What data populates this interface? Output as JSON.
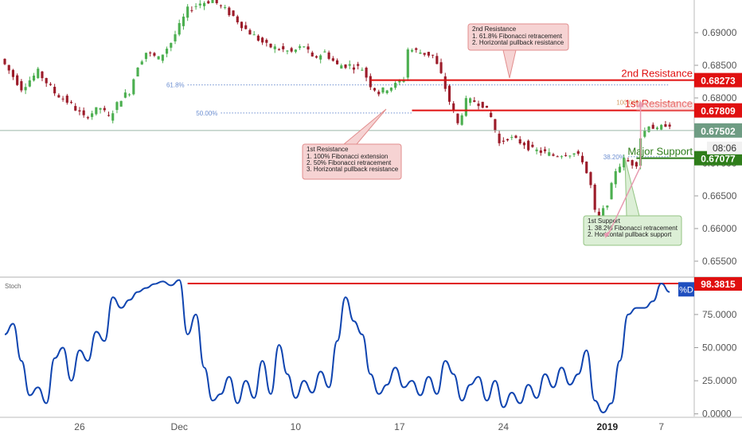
{
  "colors": {
    "up": "#26a69a",
    "down": "#ef5350",
    "candle_up": "#4caf50",
    "candle_down": "#9c1c2a",
    "resistance": "#e01010",
    "support": "#2e7d1a",
    "stoch": "#1045b0",
    "fib": "#6d8fd1",
    "grid": "#e6e6e6",
    "axis_text": "#555555",
    "price_box": "#6e9c83",
    "note_red_bg": "#f6d3d3",
    "note_red_border": "#e28e8e",
    "note_green_bg": "#dcefd6",
    "note_green_border": "#93c383"
  },
  "chart_data": {
    "type": "candlestick",
    "price_axis": {
      "ticks": [
        "0.69000",
        "0.68500",
        "0.68000",
        "0.67500",
        "0.67000",
        "0.66500",
        "0.66000",
        "0.65500"
      ],
      "ylim": [
        0.6528,
        0.695
      ]
    },
    "time_axis": {
      "ticks": [
        "26",
        "Dec",
        "10",
        "17",
        "24",
        "2019",
        "7"
      ],
      "tick_bars": [
        18,
        42,
        70,
        95,
        120,
        145,
        158
      ]
    },
    "bars_count": 165,
    "candles_sketch": [
      [
        0,
        0.686
      ],
      [
        5,
        0.6815
      ],
      [
        9,
        0.684
      ],
      [
        13,
        0.6808
      ],
      [
        17,
        0.679
      ],
      [
        20,
        0.677
      ],
      [
        24,
        0.6785
      ],
      [
        26,
        0.677
      ],
      [
        29,
        0.68
      ],
      [
        31,
        0.681
      ],
      [
        33,
        0.685
      ],
      [
        35,
        0.687
      ],
      [
        38,
        0.686
      ],
      [
        41,
        0.6885
      ],
      [
        43,
        0.691
      ],
      [
        45,
        0.6935
      ],
      [
        48,
        0.6945
      ],
      [
        51,
        0.695
      ],
      [
        53,
        0.694
      ],
      [
        56,
        0.6925
      ],
      [
        59,
        0.6905
      ],
      [
        62,
        0.689
      ],
      [
        64,
        0.688
      ],
      [
        67,
        0.6875
      ],
      [
        70,
        0.687
      ],
      [
        73,
        0.688
      ],
      [
        75,
        0.686
      ],
      [
        78,
        0.687
      ],
      [
        81,
        0.685
      ],
      [
        84,
        0.685
      ],
      [
        87,
        0.6845
      ],
      [
        89,
        0.682
      ],
      [
        91,
        0.6808
      ],
      [
        93,
        0.6815
      ],
      [
        95,
        0.682
      ],
      [
        97,
        0.683
      ],
      [
        98,
        0.6875
      ],
      [
        101,
        0.687
      ],
      [
        104,
        0.6865
      ],
      [
        106,
        0.6835
      ],
      [
        108,
        0.6795
      ],
      [
        110,
        0.676
      ],
      [
        112,
        0.6795
      ],
      [
        114,
        0.6795
      ],
      [
        116,
        0.679
      ],
      [
        118,
        0.677
      ],
      [
        120,
        0.673
      ],
      [
        122,
        0.674
      ],
      [
        124,
        0.6735
      ],
      [
        126,
        0.673
      ],
      [
        128,
        0.672
      ],
      [
        130,
        0.6718
      ],
      [
        133,
        0.6712
      ],
      [
        136,
        0.6715
      ],
      [
        138,
        0.6715
      ],
      [
        140,
        0.6705
      ],
      [
        142,
        0.6665
      ],
      [
        143,
        0.6625
      ],
      [
        144,
        0.6615
      ],
      [
        146,
        0.664
      ],
      [
        148,
        0.669
      ],
      [
        150,
        0.6705
      ],
      [
        152,
        0.67
      ],
      [
        153,
        0.67
      ],
      [
        154,
        0.674
      ],
      [
        156,
        0.676
      ],
      [
        158,
        0.675
      ],
      [
        160,
        0.676
      ]
    ],
    "levels": [
      {
        "label": "2nd Resistance",
        "price": "0.68273",
        "value": 0.68273,
        "from_bar": 88
      },
      {
        "label": "1st Resistance",
        "price": "0.67809",
        "value": 0.67809,
        "from_bar": 98
      },
      {
        "label": "Major Support",
        "price": "0.67077",
        "value": 0.67077,
        "from_bar": 152
      }
    ],
    "current_price": {
      "price": "0.67502",
      "value": 0.67502,
      "countdown": "08:06"
    },
    "fib_levels": [
      {
        "label": "61.8%",
        "value": 0.682,
        "from_bar": 44,
        "to_bar": 160
      },
      {
        "label": "50.00%",
        "value": 0.6777,
        "from_bar": 52,
        "to_bar": 98
      },
      {
        "label": "100.00%",
        "value": 0.6793,
        "from_bar": 154,
        "to_bar": 162
      },
      {
        "label": "38.20%",
        "value": 0.671,
        "from_bar": 150,
        "to_bar": 160
      }
    ],
    "annotations": [
      {
        "title": "2nd Resistance",
        "lines": [
          "1. 61.8% Fibonacci retracement",
          "2. Horizontal pullback resistance"
        ],
        "style": "red"
      },
      {
        "title": "1st Resistance",
        "lines": [
          "1. 100% Fibonacci extension",
          "2. 50% Fibonacci retracement",
          "3. Horizontal pullback resistance"
        ],
        "style": "red"
      },
      {
        "title": "1st Support",
        "lines": [
          "1. 38.2% Fibonacci retracement",
          "2. Horizontal pullback support"
        ],
        "style": "green"
      }
    ],
    "stochastic": {
      "label": "Stoch",
      "series_name": "%D",
      "last_value": "98.3815",
      "level_value": 98.3815,
      "ticks": [
        "75.0000",
        "50.0000",
        "25.0000",
        "0.0000"
      ],
      "ylim": [
        -2,
        102
      ],
      "values": [
        [
          0,
          60
        ],
        [
          2,
          68
        ],
        [
          4,
          40
        ],
        [
          6,
          14
        ],
        [
          8,
          20
        ],
        [
          10,
          8
        ],
        [
          12,
          42
        ],
        [
          14,
          50
        ],
        [
          16,
          25
        ],
        [
          18,
          48
        ],
        [
          20,
          40
        ],
        [
          22,
          62
        ],
        [
          24,
          55
        ],
        [
          26,
          88
        ],
        [
          28,
          80
        ],
        [
          30,
          86
        ],
        [
          32,
          92
        ],
        [
          34,
          95
        ],
        [
          36,
          98
        ],
        [
          38,
          100
        ],
        [
          40,
          97
        ],
        [
          42,
          101
        ],
        [
          44,
          60
        ],
        [
          46,
          75
        ],
        [
          48,
          35
        ],
        [
          50,
          10
        ],
        [
          52,
          15
        ],
        [
          54,
          28
        ],
        [
          56,
          8
        ],
        [
          58,
          25
        ],
        [
          60,
          12
        ],
        [
          62,
          40
        ],
        [
          64,
          15
        ],
        [
          66,
          52
        ],
        [
          68,
          30
        ],
        [
          70,
          12
        ],
        [
          72,
          25
        ],
        [
          74,
          16
        ],
        [
          76,
          32
        ],
        [
          78,
          20
        ],
        [
          80,
          55
        ],
        [
          82,
          88
        ],
        [
          84,
          70
        ],
        [
          86,
          60
        ],
        [
          88,
          30
        ],
        [
          90,
          15
        ],
        [
          92,
          22
        ],
        [
          94,
          35
        ],
        [
          96,
          20
        ],
        [
          98,
          25
        ],
        [
          100,
          14
        ],
        [
          102,
          28
        ],
        [
          104,
          15
        ],
        [
          106,
          40
        ],
        [
          108,
          30
        ],
        [
          110,
          10
        ],
        [
          112,
          22
        ],
        [
          114,
          28
        ],
        [
          116,
          10
        ],
        [
          118,
          25
        ],
        [
          120,
          5
        ],
        [
          122,
          16
        ],
        [
          124,
          8
        ],
        [
          126,
          22
        ],
        [
          128,
          12
        ],
        [
          130,
          30
        ],
        [
          132,
          20
        ],
        [
          134,
          35
        ],
        [
          136,
          22
        ],
        [
          138,
          30
        ],
        [
          140,
          48
        ],
        [
          142,
          10
        ],
        [
          144,
          1
        ],
        [
          146,
          8
        ],
        [
          148,
          40
        ],
        [
          150,
          75
        ],
        [
          152,
          80
        ],
        [
          154,
          80
        ],
        [
          156,
          85
        ],
        [
          158,
          98.4
        ],
        [
          160,
          92
        ]
      ]
    }
  }
}
